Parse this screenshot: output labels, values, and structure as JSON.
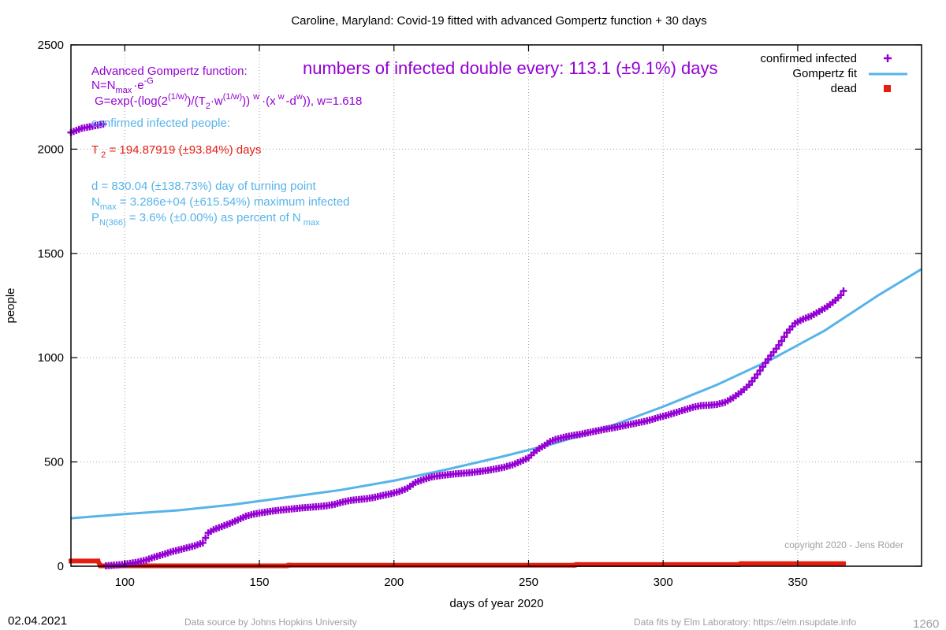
{
  "chart_data": {
    "type": "scatter",
    "title": "Caroline,  Maryland: Covid-19 fitted with advanced Gompertz function + 30 days",
    "xlabel": "days of year 2020",
    "ylabel": "people",
    "xlim": [
      80,
      396
    ],
    "ylim": [
      0,
      2500
    ],
    "grid": true,
    "legend_position": "top-right",
    "x_ticks": [
      100,
      150,
      200,
      250,
      300,
      350
    ],
    "y_ticks": [
      0,
      500,
      1000,
      1500,
      2000,
      2500
    ],
    "legend": [
      {
        "label": "confirmed infected",
        "color": "#9400d3",
        "marker": "plus"
      },
      {
        "label": "Gompertz fit",
        "color": "#56b4e9",
        "marker": "line"
      },
      {
        "label": "dead",
        "color": "#e51e10",
        "marker": "square"
      }
    ],
    "series": [
      {
        "name": "confirmed infected",
        "color": "#9400d3",
        "points": [
          [
            80,
            2080
          ],
          [
            82,
            2090
          ],
          [
            84,
            2100
          ],
          [
            86,
            2105
          ],
          [
            88,
            2110
          ],
          [
            90,
            2115
          ],
          [
            92,
            2120
          ],
          [
            93,
            2
          ],
          [
            96,
            5
          ],
          [
            99,
            8
          ],
          [
            102,
            14
          ],
          [
            105,
            20
          ],
          [
            108,
            30
          ],
          [
            111,
            44
          ],
          [
            114,
            55
          ],
          [
            117,
            68
          ],
          [
            120,
            78
          ],
          [
            123,
            88
          ],
          [
            126,
            98
          ],
          [
            129,
            112
          ],
          [
            131,
            160
          ],
          [
            133,
            175
          ],
          [
            136,
            190
          ],
          [
            139,
            205
          ],
          [
            142,
            222
          ],
          [
            145,
            240
          ],
          [
            148,
            250
          ],
          [
            151,
            257
          ],
          [
            154,
            263
          ],
          [
            157,
            268
          ],
          [
            160,
            272
          ],
          [
            163,
            276
          ],
          [
            166,
            280
          ],
          [
            169,
            283
          ],
          [
            172,
            286
          ],
          [
            175,
            290
          ],
          [
            178,
            297
          ],
          [
            181,
            308
          ],
          [
            184,
            316
          ],
          [
            187,
            320
          ],
          [
            190,
            324
          ],
          [
            193,
            331
          ],
          [
            196,
            340
          ],
          [
            199,
            348
          ],
          [
            202,
            358
          ],
          [
            205,
            374
          ],
          [
            208,
            402
          ],
          [
            211,
            416
          ],
          [
            214,
            428
          ],
          [
            217,
            434
          ],
          [
            220,
            439
          ],
          [
            223,
            443
          ],
          [
            226,
            446
          ],
          [
            229,
            450
          ],
          [
            232,
            455
          ],
          [
            235,
            460
          ],
          [
            238,
            467
          ],
          [
            241,
            475
          ],
          [
            244,
            486
          ],
          [
            247,
            502
          ],
          [
            250,
            520
          ],
          [
            252,
            545
          ],
          [
            254,
            565
          ],
          [
            256,
            580
          ],
          [
            258,
            598
          ],
          [
            260,
            608
          ],
          [
            263,
            618
          ],
          [
            266,
            626
          ],
          [
            269,
            632
          ],
          [
            272,
            640
          ],
          [
            275,
            648
          ],
          [
            278,
            656
          ],
          [
            281,
            663
          ],
          [
            284,
            670
          ],
          [
            287,
            678
          ],
          [
            290,
            686
          ],
          [
            293,
            694
          ],
          [
            296,
            704
          ],
          [
            299,
            716
          ],
          [
            302,
            726
          ],
          [
            305,
            738
          ],
          [
            308,
            750
          ],
          [
            311,
            762
          ],
          [
            314,
            770
          ],
          [
            317,
            772
          ],
          [
            320,
            776
          ],
          [
            323,
            786
          ],
          [
            326,
            808
          ],
          [
            329,
            836
          ],
          [
            332,
            870
          ],
          [
            335,
            920
          ],
          [
            338,
            975
          ],
          [
            340,
            1010
          ],
          [
            343,
            1060
          ],
          [
            346,
            1120
          ],
          [
            349,
            1165
          ],
          [
            352,
            1185
          ],
          [
            355,
            1200
          ],
          [
            358,
            1222
          ],
          [
            361,
            1245
          ],
          [
            364,
            1275
          ],
          [
            366,
            1300
          ],
          [
            367,
            1320
          ]
        ]
      },
      {
        "name": "Gompertz fit",
        "color": "#56b4e9",
        "points": [
          [
            80,
            230
          ],
          [
            100,
            250
          ],
          [
            120,
            268
          ],
          [
            140,
            295
          ],
          [
            160,
            330
          ],
          [
            180,
            365
          ],
          [
            200,
            410
          ],
          [
            220,
            465
          ],
          [
            240,
            525
          ],
          [
            260,
            590
          ],
          [
            280,
            670
          ],
          [
            300,
            765
          ],
          [
            320,
            870
          ],
          [
            340,
            990
          ],
          [
            360,
            1130
          ],
          [
            380,
            1300
          ],
          [
            396,
            1425
          ]
        ]
      },
      {
        "name": "dead",
        "color": "#e51e10",
        "points": [
          [
            80,
            25
          ],
          [
            90,
            25
          ],
          [
            91,
            2
          ],
          [
            160,
            2
          ],
          [
            161,
            5
          ],
          [
            267,
            5
          ],
          [
            268,
            8
          ],
          [
            328,
            8
          ],
          [
            329,
            12
          ],
          [
            367,
            12
          ]
        ]
      }
    ],
    "annotations": [
      {
        "id": "gompertz_title",
        "text": "Advanced Gompertz function:",
        "color": "#9400d3"
      },
      {
        "id": "doubling",
        "text": "numbers of infected double every: 113.1 (±9.1%) days",
        "color": "#9400d3"
      },
      {
        "id": "confirmed_label",
        "text": "confirmed infected people:",
        "color": "#56b4e9"
      },
      {
        "id": "t2",
        "text": "T 2 = 194.87919 (±93.84%) days",
        "color": "#e51e10"
      },
      {
        "id": "d",
        "text": "d = 830.04 (±138.73%) day of turning point",
        "color": "#56b4e9"
      },
      {
        "id": "nmax",
        "text": "N max = 3.286e+04 (±615.54%) maximum infected",
        "color": "#56b4e9"
      },
      {
        "id": "pn",
        "text": "P N(366) = 3.6% (±0.00%) as percent of N max",
        "color": "#56b4e9"
      }
    ]
  },
  "footer": {
    "date": "02.04.2021",
    "source": "Data source by Johns Hopkins University",
    "fits": "Data fits by Elm Laboratory: https://elm.nsupdate.info",
    "copyright": "copyright 2020 - Jens Röder",
    "page_number": "1260"
  },
  "formula": {
    "line1": "N=N",
    "line1_sub": "max",
    "line1_rest": "·e",
    "line1_sup": "-G",
    "line2_a": "G=exp(-(log(2",
    "line2_sup1": "(1/w)",
    "line2_b": ")/(T",
    "line2_sub1": "2",
    "line2_c": "·w",
    "line2_sup2": "(1/w)",
    "line2_d": "))",
    "line2_sup3": "w",
    "line2_e": "·(x",
    "line2_sup4": "w",
    "line2_f": "-d",
    "line2_sup5": "w",
    "line2_g": ")), w=1.618"
  },
  "stats": {
    "t2_pre": "T",
    "t2_sub": "2",
    "t2_rest": " = 194.87919 (±93.84%) days",
    "nmax_pre": "N",
    "nmax_sub": "max",
    "nmax_rest": " = 3.286e+04 (±615.54%) maximum infected",
    "pn_pre": "P",
    "pn_sub": "N(366)",
    "pn_rest": " = 3.6% (±0.00%) as percent of N",
    "pn_sub2": "max"
  }
}
